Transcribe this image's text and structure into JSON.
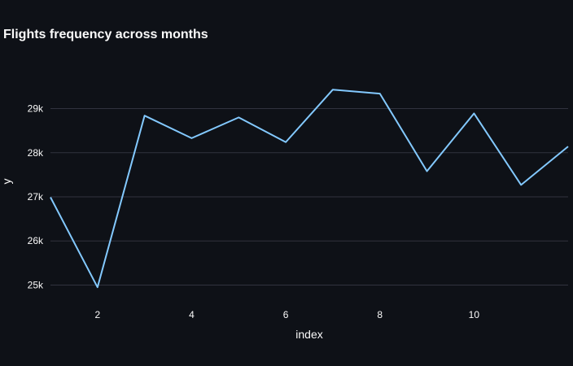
{
  "chart_data": {
    "type": "line",
    "title": "Flights frequency across months",
    "xlabel": "index",
    "ylabel": "y",
    "x": [
      1,
      2,
      3,
      4,
      5,
      6,
      7,
      8,
      9,
      10,
      11,
      12
    ],
    "series": [
      {
        "values": [
          26990,
          24950,
          28840,
          28330,
          28800,
          28240,
          29430,
          29340,
          27580,
          28890,
          27270,
          28140
        ]
      }
    ],
    "xticks": [
      2,
      4,
      6,
      8,
      10
    ],
    "xtick_labels": [
      "2",
      "4",
      "6",
      "8",
      "10"
    ],
    "yticks": [
      25000,
      26000,
      27000,
      28000,
      29000
    ],
    "ytick_labels": [
      "25k",
      "26k",
      "27k",
      "28k",
      "29k"
    ],
    "xlim": [
      1,
      12
    ],
    "ylim": [
      24750,
      29950
    ],
    "grid": "horizontal",
    "line_color": "#83c9ff",
    "grid_color": "#31333f"
  }
}
